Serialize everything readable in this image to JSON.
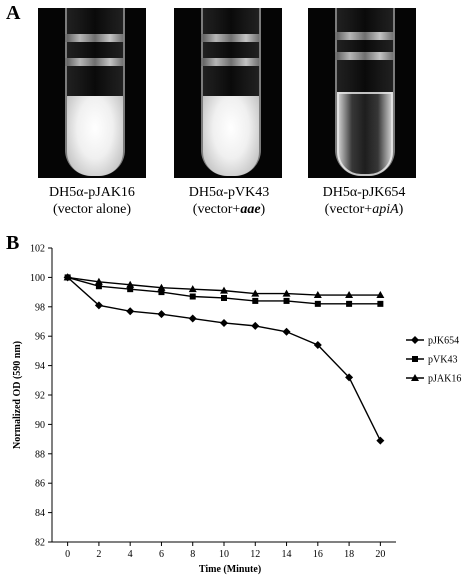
{
  "panel_a": {
    "label": "A",
    "tubes": [
      {
        "strain": "DH5α-pJAK16",
        "note_pre": "(vector alone)",
        "note_emph": "",
        "note_post": "",
        "appearance": "turbid"
      },
      {
        "strain": "DH5α-pVK43",
        "note_pre": "(vector+",
        "note_emph": "aae",
        "note_post": ")",
        "appearance": "turbid"
      },
      {
        "strain": "DH5α-pJK654",
        "note_pre": "(vector+",
        "note_emph": "apiA",
        "note_post": ")",
        "appearance": "clear"
      }
    ]
  },
  "panel_b": {
    "label": "B"
  },
  "chart_data": {
    "type": "line",
    "title": "",
    "xlabel": "Time (Minute)",
    "ylabel": "Normalized OD (590 nm)",
    "x": [
      0,
      2,
      4,
      6,
      8,
      10,
      12,
      14,
      16,
      18,
      20
    ],
    "xlim": [
      -1,
      21
    ],
    "ylim": [
      82,
      102
    ],
    "xticks": [
      0,
      2,
      4,
      6,
      8,
      10,
      12,
      14,
      16,
      18,
      20
    ],
    "yticks": [
      82,
      84,
      86,
      88,
      90,
      92,
      94,
      96,
      98,
      100,
      102
    ],
    "grid": false,
    "legend_position": "right",
    "series": [
      {
        "name": "pJK654",
        "marker": "diamond",
        "values": [
          100,
          98.1,
          97.7,
          97.5,
          97.2,
          96.9,
          96.7,
          96.3,
          95.4,
          93.2,
          88.9
        ]
      },
      {
        "name": "pVK43",
        "marker": "square",
        "values": [
          100,
          99.4,
          99.2,
          99.0,
          98.7,
          98.6,
          98.4,
          98.4,
          98.2,
          98.2,
          98.2
        ]
      },
      {
        "name": "pJAK16",
        "marker": "triangle",
        "values": [
          100,
          99.7,
          99.5,
          99.3,
          99.2,
          99.1,
          98.9,
          98.9,
          98.8,
          98.8,
          98.8
        ]
      }
    ]
  }
}
